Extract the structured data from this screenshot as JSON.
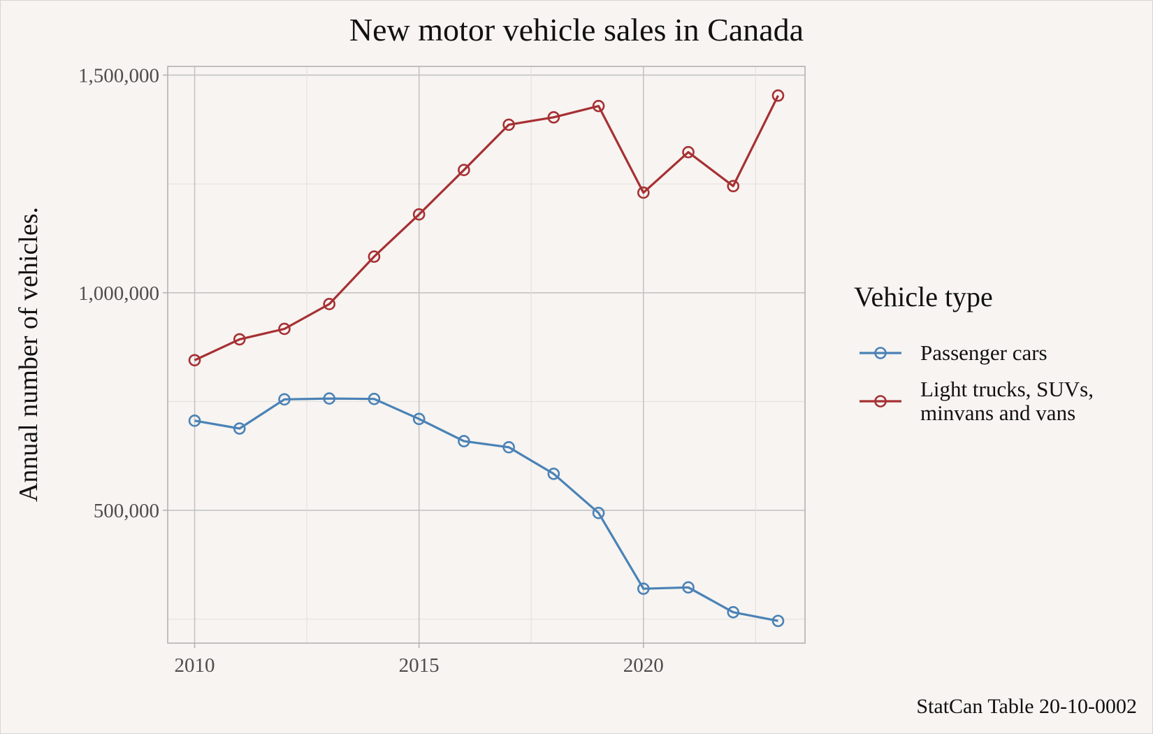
{
  "chart_data": {
    "type": "line",
    "title": "New motor vehicle sales in Canada",
    "xlabel": "",
    "ylabel": "Annual number of vehicles.",
    "x": [
      2010,
      2011,
      2012,
      2013,
      2014,
      2015,
      2016,
      2017,
      2018,
      2019,
      2020,
      2021,
      2022,
      2023
    ],
    "xlim": [
      2009.4,
      2023.6
    ],
    "ylim": [
      195000,
      1520000
    ],
    "x_ticks": [
      2010,
      2015,
      2020
    ],
    "x_tick_labels": [
      "2010",
      "2015",
      "2020"
    ],
    "y_ticks": [
      500000,
      1000000,
      1500000
    ],
    "y_tick_labels": [
      "500,000",
      "1,000,000",
      "1,500,000"
    ],
    "grid": true,
    "legend_position": "right",
    "legend_title": "Vehicle type",
    "series": [
      {
        "name": "Passenger cars",
        "color": "#4a82b6",
        "values": [
          706000,
          688000,
          755000,
          757000,
          756000,
          710000,
          659000,
          645000,
          584000,
          494000,
          320000,
          323000,
          266000,
          246000
        ]
      },
      {
        "name": "Light trucks, SUVs, minvans and vans",
        "name_lines": [
          "Light trucks, SUVs,",
          "minvans and vans"
        ],
        "color": "#a63033",
        "values": [
          845000,
          893000,
          917000,
          974000,
          1083000,
          1180000,
          1282000,
          1386000,
          1403000,
          1429000,
          1230000,
          1323000,
          1245000,
          1453000
        ]
      }
    ],
    "caption": "StatCan Table 20-10-0002"
  }
}
